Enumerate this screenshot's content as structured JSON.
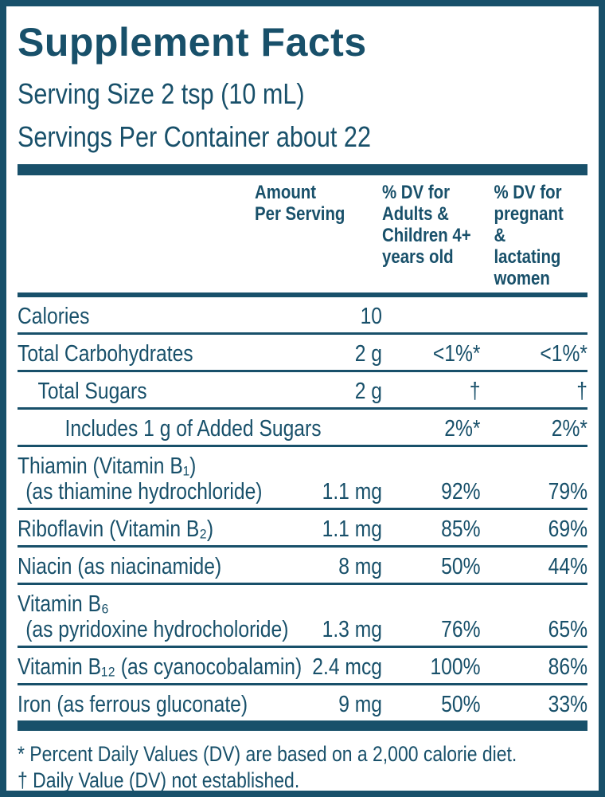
{
  "colors": {
    "ink": "#18506A",
    "background": "#FFFFFF"
  },
  "header": {
    "title": "Supplement Facts",
    "serving_size": "Serving Size 2 tsp (10 mL)",
    "servings_per_container": "Servings Per Container about 22"
  },
  "columns": {
    "amount": "Amount\nPer Serving",
    "dv_adults": "% DV for\nAdults &\nChildren 4+\nyears old",
    "dv_pregnant": "% DV for\npregnant\n& lactating\nwomen"
  },
  "rows": [
    {
      "label": "Calories",
      "amount": "10",
      "dv1": "",
      "dv2": ""
    },
    {
      "label": "Total Carbohydrates",
      "amount": "2 g",
      "dv1": "<1%*",
      "dv2": "<1%*"
    },
    {
      "label": "Total Sugars",
      "amount": "2 g",
      "dv1": "†",
      "dv2": "†"
    },
    {
      "label": "Includes 1 g of Added Sugars",
      "amount": "",
      "dv1": "2%*",
      "dv2": "2%*"
    },
    {
      "label": "Thiamin (Vitamin B₁)",
      "label2": "(as thiamine hydrochloride)",
      "amount": "1.1 mg",
      "dv1": "92%",
      "dv2": "79%"
    },
    {
      "label": "Riboflavin (Vitamin B₂)",
      "amount": "1.1 mg",
      "dv1": "85%",
      "dv2": "69%"
    },
    {
      "label": "Niacin (as niacinamide)",
      "amount": "8 mg",
      "dv1": "50%",
      "dv2": "44%"
    },
    {
      "label": "Vitamin B₆",
      "label2": "(as pyridoxine hydrocholoride)",
      "amount": "1.3 mg",
      "dv1": "76%",
      "dv2": "65%"
    },
    {
      "label": "Vitamin B₁₂ (as cyanocobalamin)",
      "amount": "2.4 mcg",
      "dv1": "100%",
      "dv2": "86%"
    },
    {
      "label": "Iron (as ferrous gluconate)",
      "amount": "9 mg",
      "dv1": "50%",
      "dv2": "33%"
    }
  ],
  "footnotes": {
    "asterisk": "* Percent Daily Values (DV) are based on a 2,000 calorie diet.",
    "dagger": "† Daily Value (DV) not established."
  }
}
